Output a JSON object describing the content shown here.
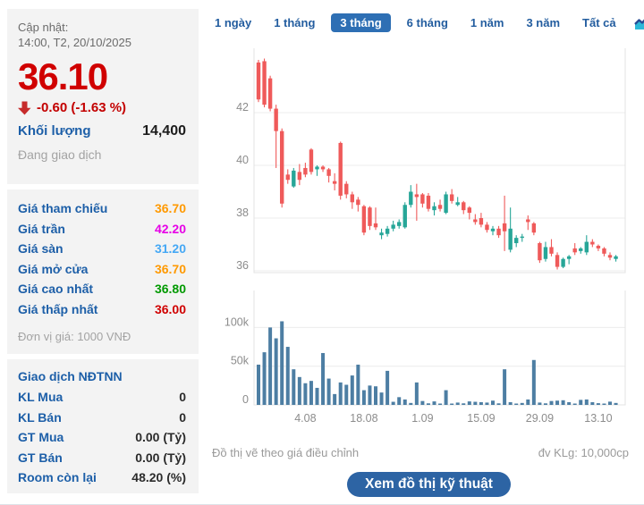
{
  "sidebar": {
    "updated_label": "Cập nhật:",
    "updated_time": "14:00, T2, 20/10/2025",
    "price": "36.10",
    "change": "-0.60 (-1.63 %)",
    "volume_label": "Khối lượng",
    "volume_value": "14,400",
    "status": "Đang giao dịch",
    "price_rows": [
      {
        "label": "Giá tham chiếu",
        "value": "36.70",
        "color": "#ff9900"
      },
      {
        "label": "Giá trần",
        "value": "42.20",
        "color": "#e600e6"
      },
      {
        "label": "Giá sàn",
        "value": "31.20",
        "color": "#45a8f5"
      },
      {
        "label": "Giá mở cửa",
        "value": "36.70",
        "color": "#ff9900"
      },
      {
        "label": "Giá cao nhất",
        "value": "36.80",
        "color": "#009a00"
      },
      {
        "label": "Giá thấp nhất",
        "value": "36.00",
        "color": "#d00000"
      }
    ],
    "price_unit_note": "Đơn vị giá: 1000 VNĐ",
    "foreign": {
      "title": "Giao dịch NĐTNN",
      "rows": [
        {
          "label": "KL Mua",
          "value": "0"
        },
        {
          "label": "KL Bán",
          "value": "0"
        },
        {
          "label": "GT Mua",
          "value": "0.00 (Tỷ)"
        },
        {
          "label": "GT Bán",
          "value": "0.00 (Tỷ)"
        },
        {
          "label": "Room còn lại",
          "value": "48.20 (%)"
        }
      ]
    }
  },
  "tabs": {
    "items": [
      {
        "label": "1 ngày"
      },
      {
        "label": "1 tháng"
      },
      {
        "label": "3 tháng"
      },
      {
        "label": "6 tháng"
      },
      {
        "label": "1 năm"
      },
      {
        "label": "3 năm"
      },
      {
        "label": "Tất cả"
      }
    ],
    "active_index": 2,
    "area_chart_icon": "area-chart-icon"
  },
  "footer": {
    "left_note": "Đồ thị vẽ theo giá điều chỉnh",
    "right_note": "đv KLg: 10,000cp",
    "button_label": "Xem đồ thị kỹ thuật"
  },
  "chart_data": {
    "type": "candlestick_with_volume",
    "period_shown": "3 tháng",
    "price_axis": {
      "ticks": [
        36,
        38,
        40,
        42
      ],
      "min": 35.8,
      "max": 44.2
    },
    "volume_axis": {
      "ticks": [
        0,
        50000,
        100000
      ],
      "tick_labels": [
        "0",
        "50k",
        "100k"
      ]
    },
    "x_labels": [
      "4.08",
      "18.08",
      "1.09",
      "15.09",
      "29.09",
      "13.10"
    ],
    "x_label_indices": [
      8,
      18,
      28,
      38,
      48,
      58
    ],
    "up_color": "#27a698",
    "down_color": "#ef5a5a",
    "volume_color": "#4d7ea3",
    "grid_color": "#ececec",
    "ohlc": [
      [
        43.9,
        44.0,
        42.4,
        42.5
      ],
      [
        43.95,
        44.05,
        42.2,
        42.3
      ],
      [
        43.3,
        43.4,
        42.05,
        42.15
      ],
      [
        42.15,
        42.3,
        39.9,
        41.3
      ],
      [
        41.3,
        41.4,
        38.4,
        38.55
      ],
      [
        39.65,
        39.85,
        39.3,
        39.45
      ],
      [
        39.2,
        39.9,
        39.15,
        39.8
      ],
      [
        39.75,
        40.05,
        39.25,
        39.45
      ],
      [
        39.9,
        40.1,
        39.55,
        39.65
      ],
      [
        40.6,
        40.65,
        39.65,
        39.75
      ],
      [
        39.85,
        40.0,
        39.6,
        39.95
      ],
      [
        39.95,
        40.0,
        39.75,
        39.85
      ],
      [
        39.85,
        39.9,
        39.35,
        39.6
      ],
      [
        39.4,
        39.7,
        39.05,
        39.3
      ],
      [
        40.85,
        40.9,
        38.7,
        38.85
      ],
      [
        39.3,
        39.4,
        38.75,
        38.9
      ],
      [
        38.9,
        39.0,
        38.35,
        38.6
      ],
      [
        38.7,
        38.8,
        38.25,
        38.5
      ],
      [
        38.45,
        38.5,
        37.35,
        37.45
      ],
      [
        38.4,
        38.45,
        37.55,
        37.7
      ],
      [
        37.8,
        38.4,
        37.55,
        37.65
      ],
      [
        37.35,
        37.6,
        37.2,
        37.45
      ],
      [
        37.4,
        37.7,
        37.3,
        37.6
      ],
      [
        37.6,
        37.9,
        37.5,
        37.75
      ],
      [
        37.7,
        37.95,
        37.6,
        37.85
      ],
      [
        37.65,
        38.6,
        37.6,
        38.5
      ],
      [
        38.5,
        39.25,
        38.4,
        39.0
      ],
      [
        38.9,
        39.3,
        37.9,
        38.8
      ],
      [
        38.9,
        38.95,
        38.4,
        38.55
      ],
      [
        38.85,
        38.95,
        38.25,
        38.35
      ],
      [
        38.3,
        38.6,
        38.1,
        38.45
      ],
      [
        38.5,
        38.7,
        38.25,
        38.35
      ],
      [
        38.2,
        39.0,
        38.15,
        38.9
      ],
      [
        38.9,
        39.1,
        38.55,
        38.65
      ],
      [
        38.5,
        38.8,
        38.45,
        38.6
      ],
      [
        38.6,
        38.65,
        38.15,
        38.3
      ],
      [
        38.4,
        38.45,
        37.95,
        38.2
      ],
      [
        37.95,
        38.15,
        37.75,
        37.85
      ],
      [
        38.0,
        38.2,
        37.65,
        37.75
      ],
      [
        37.75,
        37.85,
        37.45,
        37.55
      ],
      [
        37.5,
        37.7,
        37.35,
        37.6
      ],
      [
        37.6,
        37.7,
        37.25,
        37.35
      ],
      [
        37.8,
        38.85,
        36.75,
        37.5
      ],
      [
        36.8,
        38.4,
        36.7,
        37.6
      ],
      [
        37.05,
        37.35,
        36.9,
        37.25
      ],
      [
        37.25,
        37.4,
        37.1,
        37.3
      ],
      [
        37.95,
        38.1,
        37.55,
        37.85
      ],
      [
        37.8,
        37.85,
        37.35,
        37.45
      ],
      [
        37.05,
        37.1,
        36.3,
        36.4
      ],
      [
        36.45,
        37.1,
        36.35,
        36.9
      ],
      [
        36.9,
        37.2,
        36.55,
        36.65
      ],
      [
        36.6,
        36.7,
        36.05,
        36.15
      ],
      [
        36.15,
        36.5,
        36.1,
        36.45
      ],
      [
        36.45,
        36.6,
        36.25,
        36.55
      ],
      [
        36.85,
        37.05,
        36.6,
        36.7
      ],
      [
        36.75,
        36.9,
        36.65,
        36.85
      ],
      [
        36.7,
        37.35,
        36.6,
        37.1
      ],
      [
        37.1,
        37.2,
        36.9,
        37.0
      ],
      [
        36.95,
        37.0,
        36.75,
        36.85
      ],
      [
        36.85,
        36.9,
        36.55,
        36.65
      ],
      [
        36.6,
        36.7,
        36.4,
        36.5
      ],
      [
        36.45,
        36.6,
        36.35,
        36.55
      ]
    ],
    "volumes": [
      52000,
      68000,
      100000,
      86000,
      108000,
      75000,
      46000,
      36000,
      28000,
      31000,
      22000,
      67000,
      34000,
      14000,
      29000,
      26000,
      38000,
      52000,
      19000,
      25000,
      24000,
      16000,
      44000,
      4000,
      10000,
      7000,
      2500,
      29000,
      5000,
      2000,
      4500,
      1500,
      19000,
      1200,
      3000,
      2000,
      4500,
      4000,
      3500,
      3000,
      5500,
      2000,
      46000,
      3500,
      1500,
      2500,
      7000,
      58000,
      3000,
      2000,
      5000,
      5500,
      6000,
      3500,
      1200,
      6500,
      7000,
      3500,
      2200,
      1500,
      4200,
      2500
    ]
  }
}
